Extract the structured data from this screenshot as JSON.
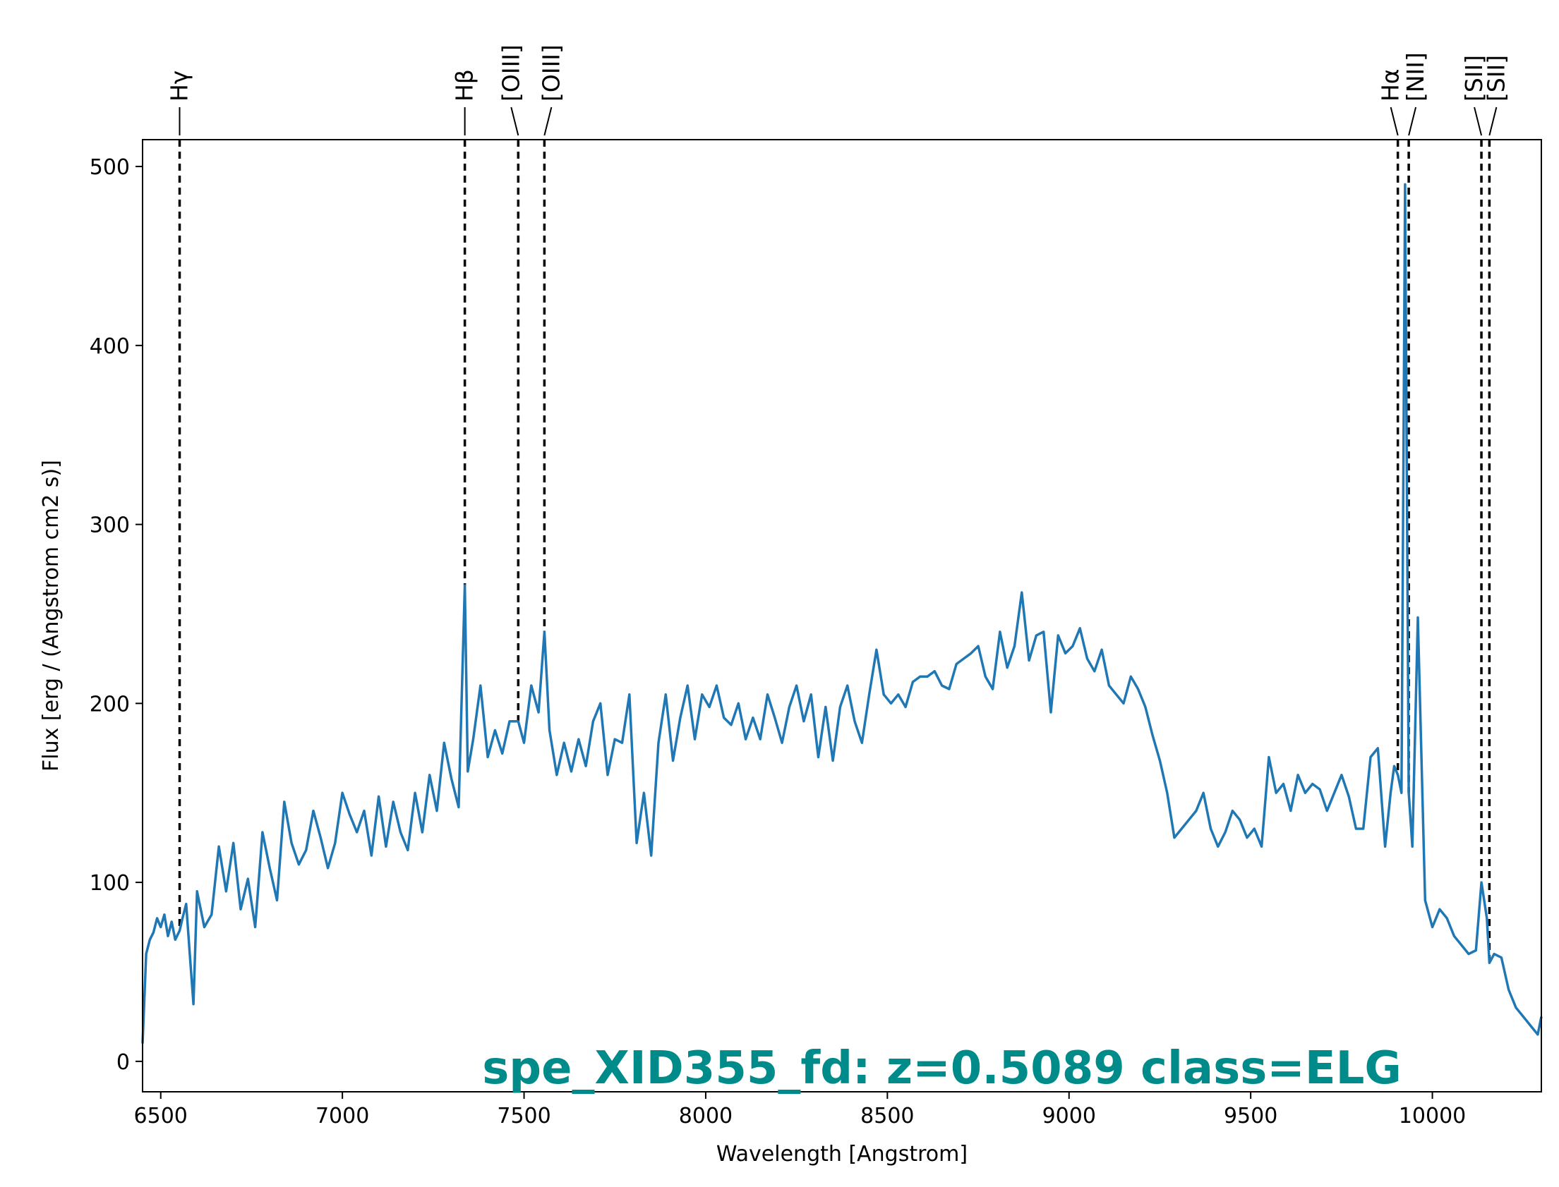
{
  "chart_data": {
    "type": "line",
    "title": "spe_XID355_fd: z=0.5089 class=ELG",
    "title_color": "#008b8b",
    "series_color": "#1f77b4",
    "xlabel": "Wavelength [Angstrom]",
    "ylabel": "Flux [erg / (Angstrom cm2 s)]",
    "xlim": [
      6450,
      10300
    ],
    "ylim": [
      -17,
      515
    ],
    "xticks": [
      6500,
      7000,
      7500,
      8000,
      8500,
      9000,
      9500,
      10000
    ],
    "yticks": [
      0,
      100,
      200,
      300,
      400,
      500
    ],
    "xtick_labels": [
      "6500",
      "7000",
      "7500",
      "8000",
      "8500",
      "9000",
      "9500",
      "10000"
    ],
    "ytick_labels": [
      "0",
      "100",
      "200",
      "300",
      "400",
      "500"
    ],
    "grid": false,
    "lines": [
      {
        "label": "Hγ",
        "x": 6552
      },
      {
        "label": "Hβ",
        "x": 7337
      },
      {
        "label": "[OIII]",
        "x": 7484
      },
      {
        "label": "[OIII]",
        "x": 7556
      },
      {
        "label": "Hα",
        "x": 9905
      },
      {
        "label": "[NII]",
        "x": 9935
      },
      {
        "label": "[SII]",
        "x": 10135
      },
      {
        "label": "[SII]",
        "x": 10157
      }
    ],
    "series": [
      {
        "x": [
          6450,
          6460,
          6470,
          6480,
          6490,
          6500,
          6510,
          6520,
          6530,
          6540,
          6552,
          6560,
          6570,
          6580,
          6590,
          6600,
          6620,
          6640,
          6660,
          6680,
          6700,
          6720,
          6740,
          6760,
          6780,
          6800,
          6820,
          6840,
          6860,
          6880,
          6900,
          6920,
          6940,
          6960,
          6980,
          7000,
          7020,
          7040,
          7060,
          7080,
          7100,
          7120,
          7140,
          7160,
          7180,
          7200,
          7220,
          7240,
          7260,
          7280,
          7300,
          7320,
          7337,
          7345,
          7360,
          7380,
          7400,
          7420,
          7440,
          7460,
          7484,
          7500,
          7520,
          7540,
          7556,
          7570,
          7590,
          7610,
          7630,
          7650,
          7670,
          7690,
          7710,
          7730,
          7750,
          7770,
          7790,
          7810,
          7830,
          7850,
          7870,
          7890,
          7910,
          7930,
          7950,
          7970,
          7990,
          8010,
          8030,
          8050,
          8070,
          8090,
          8110,
          8130,
          8150,
          8170,
          8190,
          8210,
          8230,
          8250,
          8270,
          8290,
          8310,
          8330,
          8350,
          8370,
          8390,
          8410,
          8430,
          8450,
          8470,
          8490,
          8510,
          8530,
          8550,
          8570,
          8590,
          8610,
          8630,
          8650,
          8670,
          8690,
          8710,
          8730,
          8750,
          8770,
          8790,
          8810,
          8830,
          8850,
          8870,
          8890,
          8910,
          8930,
          8950,
          8970,
          8990,
          9010,
          9030,
          9050,
          9070,
          9090,
          9110,
          9130,
          9150,
          9170,
          9190,
          9210,
          9230,
          9250,
          9270,
          9290,
          9310,
          9330,
          9350,
          9370,
          9390,
          9410,
          9430,
          9450,
          9470,
          9490,
          9510,
          9530,
          9550,
          9570,
          9590,
          9610,
          9630,
          9650,
          9670,
          9690,
          9710,
          9730,
          9750,
          9770,
          9790,
          9810,
          9830,
          9850,
          9870,
          9885,
          9895,
          9905,
          9915,
          9925,
          9935,
          9945,
          9960,
          9980,
          10000,
          10020,
          10040,
          10060,
          10080,
          10100,
          10120,
          10135,
          10150,
          10157,
          10170,
          10190,
          10210,
          10230,
          10250,
          10270,
          10290,
          10300
        ],
        "y": [
          10,
          60,
          68,
          72,
          80,
          75,
          82,
          70,
          78,
          68,
          73,
          80,
          88,
          60,
          32,
          95,
          75,
          82,
          120,
          95,
          122,
          85,
          102,
          75,
          128,
          108,
          90,
          145,
          122,
          110,
          118,
          140,
          125,
          108,
          122,
          150,
          138,
          128,
          140,
          115,
          148,
          120,
          145,
          128,
          118,
          150,
          128,
          160,
          140,
          178,
          158,
          142,
          266,
          162,
          180,
          210,
          170,
          185,
          172,
          190,
          190,
          178,
          210,
          195,
          240,
          185,
          160,
          178,
          162,
          180,
          165,
          190,
          200,
          160,
          180,
          178,
          205,
          122,
          150,
          115,
          178,
          205,
          168,
          192,
          210,
          180,
          205,
          198,
          210,
          192,
          188,
          200,
          180,
          192,
          180,
          205,
          192,
          178,
          198,
          210,
          190,
          205,
          170,
          198,
          168,
          198,
          210,
          190,
          178,
          205,
          230,
          205,
          200,
          205,
          198,
          212,
          215,
          215,
          218,
          210,
          208,
          222,
          225,
          228,
          232,
          215,
          208,
          240,
          220,
          232,
          262,
          224,
          238,
          240,
          195,
          238,
          228,
          232,
          242,
          225,
          218,
          230,
          210,
          205,
          200,
          215,
          208,
          198,
          182,
          168,
          150,
          125,
          130,
          135,
          140,
          150,
          130,
          120,
          128,
          140,
          135,
          125,
          130,
          120,
          170,
          150,
          155,
          140,
          160,
          150,
          155,
          152,
          140,
          150,
          160,
          148,
          130,
          130,
          170,
          175,
          120,
          150,
          165,
          160,
          150,
          490,
          150,
          120,
          248,
          90,
          75,
          85,
          80,
          70,
          65,
          60,
          62,
          100,
          80,
          55,
          60,
          58,
          40,
          30,
          25,
          20,
          15,
          25
        ]
      }
    ]
  }
}
